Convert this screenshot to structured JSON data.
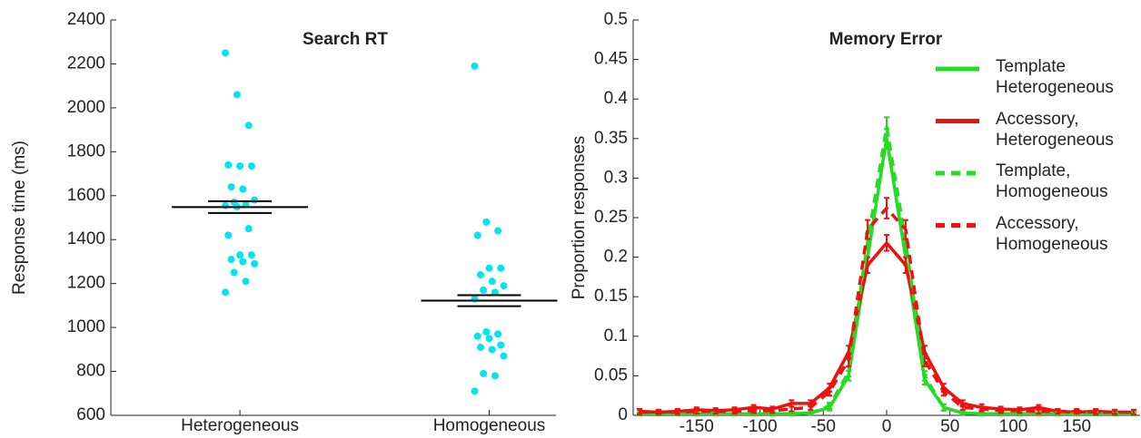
{
  "chart_data": [
    {
      "type": "strip",
      "title": "Search RT",
      "y_label": "Response time (ms)",
      "categories": [
        "Heterogeneous",
        "Homogeneous"
      ],
      "values": [
        [
          2250,
          2060,
          1920,
          1740,
          1735,
          1735,
          1640,
          1630,
          1580,
          1570,
          1560,
          1555,
          1550,
          1450,
          1420,
          1330,
          1330,
          1310,
          1300,
          1290,
          1250,
          1210,
          1160
        ],
        [
          2190,
          1480,
          1440,
          1420,
          1270,
          1270,
          1240,
          1210,
          1190,
          1170,
          1160,
          1130,
          980,
          970,
          960,
          950,
          920,
          910,
          900,
          870,
          790,
          780,
          710
        ]
      ],
      "means": [
        1548,
        1122
      ],
      "errors": [
        27,
        25
      ],
      "color": "#00e5ee",
      "mean_color": "#000000",
      "ylim": [
        600,
        2400
      ],
      "yticks": [
        600,
        800,
        1000,
        1200,
        1400,
        1600,
        1800,
        2000,
        2200,
        2400
      ]
    },
    {
      "type": "line",
      "title": "Memory Error",
      "y_label": "Proportion responses",
      "x": [
        -195,
        -180,
        -165,
        -150,
        -135,
        -120,
        -105,
        -90,
        -75,
        -60,
        -45,
        -30,
        -15,
        0,
        15,
        30,
        45,
        60,
        75,
        90,
        105,
        120,
        135,
        150,
        165,
        180,
        195
      ],
      "series": [
        {
          "name": "Template Heterogeneous",
          "color": "#22dd22",
          "dash": false,
          "values": [
            0.002,
            0.002,
            0.002,
            0.002,
            0.002,
            0.002,
            0.002,
            0.002,
            0.002,
            0.003,
            0.01,
            0.05,
            0.2,
            0.35,
            0.2,
            0.045,
            0.01,
            0.003,
            0.002,
            0.002,
            0.002,
            0.002,
            0.002,
            0.002,
            0.002,
            0.002,
            0.002
          ],
          "errors": [
            0.002,
            0.002,
            0.002,
            0.002,
            0.002,
            0.002,
            0.002,
            0.002,
            0.002,
            0.002,
            0.004,
            0.006,
            0.01,
            0.012,
            0.01,
            0.006,
            0.004,
            0.002,
            0.002,
            0.002,
            0.002,
            0.002,
            0.002,
            0.002,
            0.002,
            0.002,
            0.002
          ]
        },
        {
          "name": "Accessory, Heterogeneous",
          "color": "#ee1111",
          "dash": false,
          "values": [
            0.005,
            0.004,
            0.005,
            0.007,
            0.006,
            0.007,
            0.01,
            0.008,
            0.015,
            0.015,
            0.035,
            0.08,
            0.19,
            0.218,
            0.19,
            0.08,
            0.035,
            0.015,
            0.01,
            0.008,
            0.007,
            0.01,
            0.005,
            0.004,
            0.005,
            0.004,
            0.004
          ],
          "errors": [
            0.003,
            0.003,
            0.003,
            0.003,
            0.003,
            0.003,
            0.003,
            0.003,
            0.004,
            0.004,
            0.005,
            0.008,
            0.01,
            0.01,
            0.01,
            0.008,
            0.005,
            0.004,
            0.004,
            0.003,
            0.003,
            0.003,
            0.003,
            0.003,
            0.003,
            0.003,
            0.003
          ]
        },
        {
          "name": "Template, Homogeneous",
          "color": "#22dd22",
          "dash": true,
          "values": [
            0.002,
            0.002,
            0.002,
            0.002,
            0.002,
            0.002,
            0.002,
            0.002,
            0.002,
            0.003,
            0.012,
            0.055,
            0.22,
            0.365,
            0.22,
            0.05,
            0.01,
            0.003,
            0.002,
            0.002,
            0.002,
            0.002,
            0.002,
            0.002,
            0.002,
            0.002,
            0.002
          ],
          "errors": [
            0.002,
            0.002,
            0.002,
            0.002,
            0.002,
            0.002,
            0.002,
            0.002,
            0.002,
            0.002,
            0.004,
            0.006,
            0.01,
            0.012,
            0.01,
            0.006,
            0.004,
            0.002,
            0.002,
            0.002,
            0.002,
            0.002,
            0.002,
            0.002,
            0.002,
            0.002,
            0.002
          ]
        },
        {
          "name": "Accessory, Homogeneous",
          "color": "#ee1111",
          "dash": true,
          "values": [
            0.004,
            0.004,
            0.004,
            0.005,
            0.005,
            0.005,
            0.006,
            0.006,
            0.008,
            0.01,
            0.03,
            0.07,
            0.235,
            0.262,
            0.235,
            0.07,
            0.03,
            0.01,
            0.008,
            0.006,
            0.006,
            0.005,
            0.005,
            0.005,
            0.004,
            0.004,
            0.004
          ],
          "errors": [
            0.003,
            0.003,
            0.003,
            0.003,
            0.003,
            0.003,
            0.003,
            0.003,
            0.003,
            0.003,
            0.005,
            0.008,
            0.012,
            0.013,
            0.012,
            0.008,
            0.005,
            0.003,
            0.003,
            0.003,
            0.003,
            0.003,
            0.003,
            0.003,
            0.003,
            0.003,
            0.003
          ]
        }
      ],
      "xlim": [
        -200,
        200
      ],
      "xticks": [
        -150,
        -100,
        -50,
        0,
        50,
        100,
        150
      ],
      "ylim": [
        0,
        0.5
      ],
      "yticks": [
        0,
        0.05,
        0.1,
        0.15,
        0.2,
        0.25,
        0.3,
        0.35,
        0.4,
        0.45,
        0.5
      ],
      "legend": "upper right"
    }
  ]
}
